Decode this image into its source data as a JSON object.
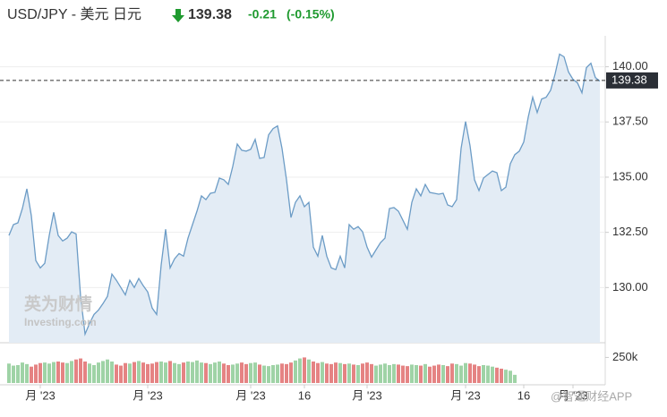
{
  "chart_data": {
    "type": "area",
    "title": "USD/JPY - 美元 日元",
    "price": 139.38,
    "change": -0.21,
    "change_pct": "(-0.15%)",
    "color": "#6c9cc6",
    "fill": "#e3ecf5",
    "change_color": "#1f9a2f",
    "grid": true,
    "values": [
      132.36,
      132.85,
      132.93,
      133.58,
      134.47,
      133.25,
      131.22,
      130.89,
      131.1,
      132.36,
      133.41,
      132.36,
      132.11,
      132.24,
      132.52,
      132.43,
      129.6,
      127.89,
      128.37,
      128.78,
      128.98,
      129.27,
      129.6,
      130.61,
      130.33,
      130,
      129.67,
      130.33,
      130,
      130.41,
      130.08,
      129.8,
      129.07,
      128.78,
      131.02,
      132.64,
      130.89,
      131.3,
      131.54,
      131.42,
      132.24,
      132.85,
      133.46,
      134.15,
      133.98,
      134.27,
      134.31,
      134.96,
      134.88,
      134.67,
      135.49,
      136.5,
      136.22,
      136.18,
      136.26,
      136.71,
      135.85,
      135.89,
      136.91,
      137.2,
      137.32,
      136.3,
      134.88,
      133.17,
      133.86,
      134.15,
      133.66,
      133.86,
      131.83,
      131.42,
      132.36,
      131.42,
      130.89,
      130.81,
      131.42,
      130.89,
      132.85,
      132.64,
      132.76,
      132.52,
      131.83,
      131.38,
      131.71,
      132.03,
      132.24,
      133.58,
      133.62,
      133.46,
      133.05,
      132.64,
      133.86,
      134.47,
      134.15,
      134.67,
      134.31,
      134.27,
      134.23,
      134.27,
      133.74,
      133.66,
      133.98,
      136.3,
      137.52,
      136.42,
      134.88,
      134.39,
      134.96,
      135.12,
      135.28,
      135.2,
      134.39,
      134.55,
      135.61,
      136.02,
      136.18,
      136.59,
      137.72,
      138.62,
      137.93,
      138.54,
      138.62,
      138.94,
      139.67,
      140.57,
      140.45,
      139.76,
      139.43,
      139.27,
      138.82,
      139.96,
      140.16,
      139.51,
      139.35
    ],
    "ylim": [
      127.5,
      141.2
    ],
    "yticks": [
      {
        "value": 130,
        "label": "130.00"
      },
      {
        "value": 132.5,
        "label": "132.50"
      },
      {
        "value": 135,
        "label": "135.00"
      },
      {
        "value": 137.5,
        "label": "137.50"
      },
      {
        "value": 140,
        "label": "140.00"
      }
    ],
    "xticks": [
      {
        "value": 7,
        "label": "月 '23"
      },
      {
        "value": 31,
        "label": "月 '23"
      },
      {
        "value": 54,
        "label": "月 '23"
      },
      {
        "value": 66,
        "label": "16"
      },
      {
        "value": 80,
        "label": "月 '23"
      },
      {
        "value": 102,
        "label": "月 '23"
      },
      {
        "value": 115,
        "label": "16"
      },
      {
        "value": 126,
        "label": "月 '23"
      }
    ],
    "volume": {
      "values": [
        190000,
        170000,
        175000,
        200000,
        185000,
        160000,
        180000,
        195000,
        200000,
        190000,
        205000,
        210000,
        200000,
        195000,
        215000,
        230000,
        240000,
        210000,
        190000,
        175000,
        200000,
        215000,
        230000,
        210000,
        180000,
        170000,
        195000,
        190000,
        205000,
        215000,
        200000,
        185000,
        190000,
        205000,
        210000,
        200000,
        215000,
        195000,
        185000,
        200000,
        210000,
        205000,
        220000,
        200000,
        195000,
        185000,
        200000,
        210000,
        190000,
        175000,
        180000,
        190000,
        200000,
        185000,
        195000,
        200000,
        180000,
        170000,
        165000,
        175000,
        180000,
        190000,
        185000,
        200000,
        220000,
        240000,
        250000,
        230000,
        210000,
        195000,
        205000,
        190000,
        185000,
        200000,
        195000,
        185000,
        190000,
        180000,
        175000,
        190000,
        200000,
        185000,
        170000,
        180000,
        190000,
        175000,
        185000,
        180000,
        170000,
        165000,
        180000,
        175000,
        170000,
        185000,
        160000,
        170000,
        180000,
        175000,
        165000,
        190000,
        185000,
        170000,
        195000,
        190000,
        180000,
        165000,
        175000,
        170000,
        160000,
        150000,
        140000,
        130000,
        120000,
        80000,
        null,
        null,
        null,
        null,
        null,
        null,
        null,
        null,
        null,
        null,
        null,
        null,
        null,
        null,
        null,
        null,
        null,
        null,
        null
      ],
      "ylim": [
        0,
        280000
      ],
      "yticks": [
        {
          "value": 250000,
          "label": "250k"
        }
      ],
      "up_color": "#9fd3a6",
      "down_color": "#e58383"
    },
    "watermarks": [
      "英为财情",
      "Investing.com",
      "@智通财经APP"
    ]
  }
}
